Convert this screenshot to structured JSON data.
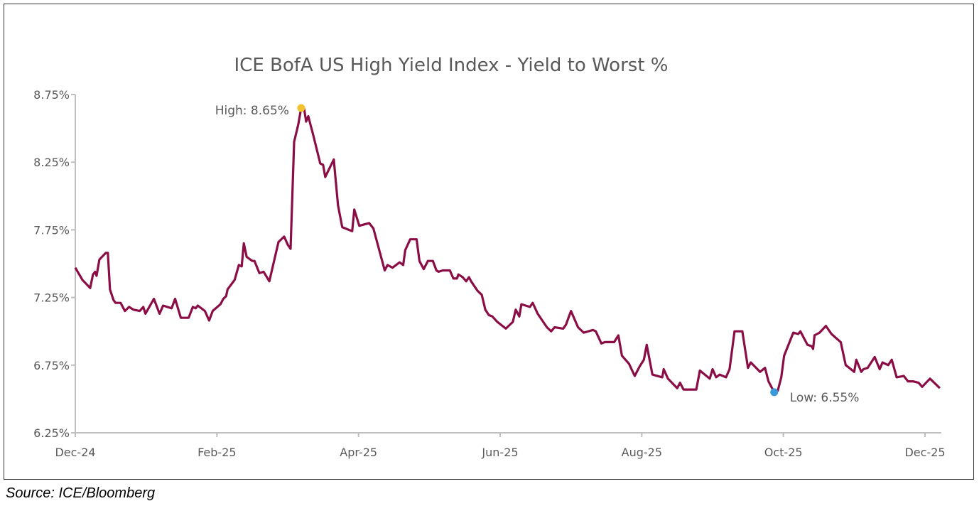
{
  "source": "Source: ICE/Bloomberg",
  "colors": {
    "line": "#8b0d45",
    "high": "#f2c12e",
    "low": "#3a9ad9",
    "axis": "#bfbfbf",
    "text": "#595959"
  },
  "chart_data": {
    "type": "line",
    "title": "ICE BofA US High Yield Index - Yield to Worst %",
    "xlabel": "",
    "ylabel": "",
    "x_unit": "months since Dec-24",
    "xlim": [
      0,
      12.21
    ],
    "ylim": [
      6.25,
      8.75
    ],
    "yticks": [
      6.25,
      6.75,
      7.25,
      7.75,
      8.25,
      8.75
    ],
    "ytick_labels": [
      "6.25%",
      "6.75%",
      "7.25%",
      "7.75%",
      "8.25%",
      "8.75%"
    ],
    "xticks": [
      0,
      2,
      4,
      6,
      8,
      10,
      12
    ],
    "xtick_labels": [
      "Dec-24",
      "Feb-25",
      "Apr-25",
      "Jun-25",
      "Aug-25",
      "Oct-25",
      "Dec-25"
    ],
    "grid": false,
    "legend": "none",
    "annotations": [
      {
        "label": "High: 8.65%",
        "x": 3.19,
        "y": 8.65,
        "kind": "high"
      },
      {
        "label": "Low: 6.55%",
        "x": 9.87,
        "y": 6.55,
        "kind": "low"
      }
    ],
    "series": [
      {
        "name": "Yield to Worst %",
        "points": [
          [
            0,
            7.47
          ],
          [
            0.1,
            7.38
          ],
          [
            0.21,
            7.32
          ],
          [
            0.25,
            7.42
          ],
          [
            0.28,
            7.44
          ],
          [
            0.3,
            7.41
          ],
          [
            0.34,
            7.53
          ],
          [
            0.43,
            7.58
          ],
          [
            0.46,
            7.58
          ],
          [
            0.49,
            7.31
          ],
          [
            0.54,
            7.23
          ],
          [
            0.57,
            7.21
          ],
          [
            0.64,
            7.21
          ],
          [
            0.7,
            7.15
          ],
          [
            0.76,
            7.18
          ],
          [
            0.82,
            7.16
          ],
          [
            0.91,
            7.15
          ],
          [
            0.96,
            7.18
          ],
          [
            0.99,
            7.13
          ],
          [
            1.11,
            7.24
          ],
          [
            1.19,
            7.13
          ],
          [
            1.24,
            7.19
          ],
          [
            1.36,
            7.17
          ],
          [
            1.41,
            7.24
          ],
          [
            1.49,
            7.1
          ],
          [
            1.6,
            7.1
          ],
          [
            1.66,
            7.18
          ],
          [
            1.7,
            7.17
          ],
          [
            1.73,
            7.19
          ],
          [
            1.83,
            7.15
          ],
          [
            1.89,
            7.08
          ],
          [
            1.94,
            7.15
          ],
          [
            2.05,
            7.2
          ],
          [
            2.09,
            7.24
          ],
          [
            2.13,
            7.26
          ],
          [
            2.15,
            7.31
          ],
          [
            2.25,
            7.38
          ],
          [
            2.31,
            7.49
          ],
          [
            2.35,
            7.48
          ],
          [
            2.38,
            7.65
          ],
          [
            2.42,
            7.55
          ],
          [
            2.5,
            7.52
          ],
          [
            2.53,
            7.52
          ],
          [
            2.6,
            7.43
          ],
          [
            2.66,
            7.44
          ],
          [
            2.74,
            7.37
          ],
          [
            2.87,
            7.66
          ],
          [
            2.95,
            7.7
          ],
          [
            3.0,
            7.64
          ],
          [
            3.04,
            7.61
          ],
          [
            3.09,
            8.4
          ],
          [
            3.15,
            8.53
          ],
          [
            3.19,
            8.65
          ],
          [
            3.23,
            8.65
          ],
          [
            3.26,
            8.55
          ],
          [
            3.29,
            8.59
          ],
          [
            3.36,
            8.45
          ],
          [
            3.46,
            8.24
          ],
          [
            3.5,
            8.23
          ],
          [
            3.53,
            8.14
          ],
          [
            3.65,
            8.27
          ],
          [
            3.71,
            7.93
          ],
          [
            3.77,
            7.77
          ],
          [
            3.91,
            7.74
          ],
          [
            3.94,
            7.9
          ],
          [
            4.01,
            7.78
          ],
          [
            4.15,
            7.8
          ],
          [
            4.21,
            7.76
          ],
          [
            4.37,
            7.45
          ],
          [
            4.41,
            7.49
          ],
          [
            4.48,
            7.47
          ],
          [
            4.58,
            7.51
          ],
          [
            4.63,
            7.49
          ],
          [
            4.66,
            7.6
          ],
          [
            4.73,
            7.68
          ],
          [
            4.82,
            7.68
          ],
          [
            4.86,
            7.52
          ],
          [
            4.92,
            7.46
          ],
          [
            4.98,
            7.52
          ],
          [
            5.05,
            7.52
          ],
          [
            5.1,
            7.45
          ],
          [
            5.13,
            7.44
          ],
          [
            5.19,
            7.45
          ],
          [
            5.29,
            7.45
          ],
          [
            5.34,
            7.39
          ],
          [
            5.39,
            7.39
          ],
          [
            5.41,
            7.42
          ],
          [
            5.47,
            7.4
          ],
          [
            5.52,
            7.37
          ],
          [
            5.56,
            7.4
          ],
          [
            5.59,
            7.37
          ],
          [
            5.68,
            7.3
          ],
          [
            5.74,
            7.27
          ],
          [
            5.79,
            7.16
          ],
          [
            5.84,
            7.12
          ],
          [
            5.89,
            7.11
          ],
          [
            5.96,
            7.07
          ],
          [
            6.08,
            7.02
          ],
          [
            6.18,
            7.07
          ],
          [
            6.22,
            7.16
          ],
          [
            6.27,
            7.11
          ],
          [
            6.3,
            7.2
          ],
          [
            6.42,
            7.18
          ],
          [
            6.46,
            7.21
          ],
          [
            6.53,
            7.13
          ],
          [
            6.66,
            7.03
          ],
          [
            6.72,
            7.0
          ],
          [
            6.77,
            7.03
          ],
          [
            6.89,
            7.02
          ],
          [
            6.93,
            7.05
          ],
          [
            7.0,
            7.15
          ],
          [
            7.1,
            7.03
          ],
          [
            7.18,
            6.99
          ],
          [
            7.31,
            7.01
          ],
          [
            7.35,
            7.0
          ],
          [
            7.43,
            6.91
          ],
          [
            7.48,
            6.92
          ],
          [
            7.61,
            6.92
          ],
          [
            7.67,
            6.97
          ],
          [
            7.72,
            6.82
          ],
          [
            7.82,
            6.76
          ],
          [
            7.9,
            6.67
          ],
          [
            7.97,
            6.74
          ],
          [
            8.03,
            6.79
          ],
          [
            8.07,
            6.9
          ],
          [
            8.15,
            6.68
          ],
          [
            8.29,
            6.66
          ],
          [
            8.31,
            6.72
          ],
          [
            8.37,
            6.65
          ],
          [
            8.5,
            6.58
          ],
          [
            8.54,
            6.62
          ],
          [
            8.59,
            6.57
          ],
          [
            8.77,
            6.57
          ],
          [
            8.82,
            6.71
          ],
          [
            8.96,
            6.65
          ],
          [
            9.0,
            6.72
          ],
          [
            9.05,
            6.66
          ],
          [
            9.1,
            6.68
          ],
          [
            9.19,
            6.66
          ],
          [
            9.24,
            6.72
          ],
          [
            9.31,
            7.0
          ],
          [
            9.42,
            7.0
          ],
          [
            9.5,
            6.73
          ],
          [
            9.54,
            6.77
          ],
          [
            9.67,
            6.7
          ],
          [
            9.74,
            6.73
          ],
          [
            9.79,
            6.63
          ],
          [
            9.87,
            6.55
          ],
          [
            9.92,
            6.56
          ],
          [
            9.97,
            6.66
          ],
          [
            10.01,
            6.82
          ],
          [
            10.14,
            6.99
          ],
          [
            10.21,
            6.98
          ],
          [
            10.24,
            7.0
          ],
          [
            10.34,
            6.9
          ],
          [
            10.4,
            6.89
          ],
          [
            10.42,
            6.87
          ],
          [
            10.44,
            6.97
          ],
          [
            10.51,
            6.99
          ],
          [
            10.6,
            7.04
          ],
          [
            10.68,
            6.98
          ],
          [
            10.81,
            6.92
          ],
          [
            10.88,
            6.75
          ],
          [
            10.93,
            6.73
          ],
          [
            11.0,
            6.7
          ],
          [
            11.03,
            6.79
          ],
          [
            11.1,
            6.7
          ],
          [
            11.13,
            6.72
          ],
          [
            11.19,
            6.73
          ],
          [
            11.29,
            6.81
          ],
          [
            11.36,
            6.72
          ],
          [
            11.4,
            6.77
          ],
          [
            11.48,
            6.75
          ],
          [
            11.53,
            6.79
          ],
          [
            11.6,
            6.66
          ],
          [
            11.7,
            6.67
          ],
          [
            11.76,
            6.63
          ],
          [
            11.83,
            6.63
          ],
          [
            11.91,
            6.62
          ],
          [
            11.96,
            6.59
          ],
          [
            12.07,
            6.65
          ],
          [
            12.21,
            6.58
          ]
        ]
      }
    ]
  }
}
